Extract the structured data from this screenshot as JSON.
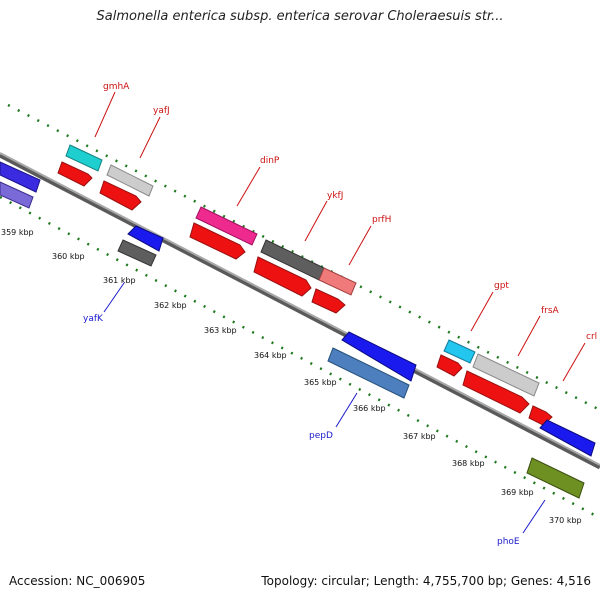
{
  "title": "Salmonella enterica subsp. enterica serovar Choleraesuis str...",
  "accession": "Accession: NC_006905",
  "topology": "Topology: circular; Length: 4,755,700 bp; Genes: 4,516",
  "colors": {
    "backbone": "#8a8a8a",
    "tick": "#1f7a1f",
    "orf": "#ee1111",
    "forward_label": "#cc1111",
    "reverse_label": "#1a1acc"
  },
  "kbp_labels": [
    "359 kbp",
    "360 kbp",
    "361 kbp",
    "362 kbp",
    "363 kbp",
    "364 kbp",
    "365 kbp",
    "366 kbp",
    "367 kbp",
    "368 kbp",
    "369 kbp",
    "370 kbp"
  ],
  "forward_genes": [
    "gmhA",
    "yafJ",
    "dinP",
    "ykfJ",
    "prfH",
    "gpt",
    "frsA",
    "crl"
  ],
  "reverse_genes": [
    "yafK",
    "pepD",
    "phoE"
  ]
}
